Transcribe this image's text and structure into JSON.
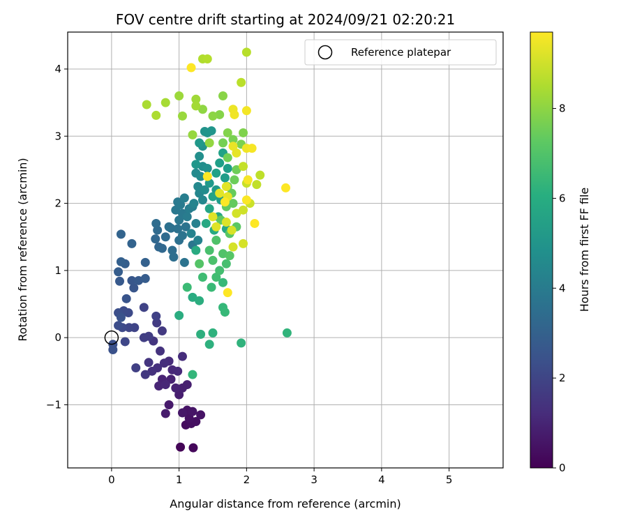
{
  "chart_data": {
    "type": "scatter",
    "title": "FOV centre drift starting at 2024/09/21 02:20:21",
    "xlabel": "Angular distance from reference (arcmin)",
    "ylabel": "Rotation from reference (arcmin)",
    "xlim": [
      -0.65,
      5.8
    ],
    "ylim": [
      -1.94,
      4.55
    ],
    "x_ticks": [
      0,
      1,
      2,
      3,
      4,
      5
    ],
    "x_tick_labels": [
      "0",
      "1",
      "2",
      "3",
      "4",
      "5"
    ],
    "y_ticks": [
      -1,
      0,
      1,
      2,
      3,
      4
    ],
    "y_tick_labels": [
      "−1",
      "0",
      "1",
      "2",
      "3",
      "4"
    ],
    "grid": true,
    "legend": {
      "placement": "top-right",
      "entries": [
        "Reference platepar"
      ]
    },
    "reference_point": {
      "x": 0,
      "y": 0,
      "label": "Reference platepar"
    },
    "colorbar": {
      "label": "Hours from first FF file",
      "colormap": "viridis",
      "range": [
        0,
        9.7
      ],
      "ticks": [
        0,
        2,
        4,
        6,
        8
      ],
      "tick_labels": [
        "0",
        "2",
        "4",
        "6",
        "8"
      ]
    },
    "points": [
      [
        1.02,
        -1.63,
        0.1
      ],
      [
        1.21,
        -1.64,
        0.2
      ],
      [
        1.1,
        -1.3,
        0.3
      ],
      [
        1.18,
        -1.28,
        0.35
      ],
      [
        1.25,
        -1.25,
        0.4
      ],
      [
        1.15,
        -1.2,
        0.45
      ],
      [
        1.32,
        -1.15,
        0.5
      ],
      [
        1.12,
        -1.08,
        0.5
      ],
      [
        1.2,
        -1.1,
        0.55
      ],
      [
        1.05,
        -1.12,
        0.6
      ],
      [
        0.85,
        -1.0,
        0.7
      ],
      [
        0.8,
        -1.13,
        0.75
      ],
      [
        1.0,
        -0.85,
        0.8
      ],
      [
        1.05,
        -0.75,
        0.85
      ],
      [
        1.12,
        -0.7,
        0.85
      ],
      [
        0.95,
        -0.75,
        0.9
      ],
      [
        0.88,
        -0.62,
        0.9
      ],
      [
        0.75,
        -0.62,
        0.95
      ],
      [
        0.7,
        -0.72,
        1.0
      ],
      [
        0.8,
        -0.7,
        1.05
      ],
      [
        0.9,
        -0.48,
        1.1
      ],
      [
        0.98,
        -0.5,
        1.15
      ],
      [
        0.85,
        -0.35,
        1.2
      ],
      [
        1.05,
        -0.28,
        1.25
      ],
      [
        0.78,
        -0.38,
        1.3
      ],
      [
        0.68,
        -0.45,
        1.35
      ],
      [
        0.6,
        -0.5,
        1.4
      ],
      [
        0.72,
        -0.2,
        1.45
      ],
      [
        0.62,
        -0.05,
        1.5
      ],
      [
        0.55,
        -0.37,
        1.5
      ],
      [
        0.5,
        -0.55,
        1.6
      ],
      [
        0.75,
        0.1,
        1.65
      ],
      [
        0.67,
        0.22,
        1.7
      ],
      [
        0.55,
        0.02,
        1.75
      ],
      [
        0.48,
        0.0,
        1.8
      ],
      [
        0.36,
        -0.45,
        1.85
      ],
      [
        0.66,
        0.32,
        1.9
      ],
      [
        0.48,
        0.45,
        1.95
      ],
      [
        0.34,
        0.15,
        2.0
      ],
      [
        0.26,
        0.15,
        2.05
      ],
      [
        0.2,
        -0.06,
        2.1
      ],
      [
        0.16,
        0.15,
        2.15
      ],
      [
        0.25,
        0.37,
        2.2
      ],
      [
        0.18,
        0.4,
        2.25
      ],
      [
        0.1,
        0.18,
        2.3
      ],
      [
        0.1,
        0.37,
        2.35
      ],
      [
        0.02,
        -0.1,
        2.4
      ],
      [
        0.02,
        -0.18,
        2.45
      ],
      [
        0.14,
        0.3,
        2.5
      ],
      [
        0.22,
        0.58,
        2.55
      ],
      [
        0.33,
        0.74,
        2.6
      ],
      [
        0.3,
        0.85,
        2.65
      ],
      [
        0.12,
        0.84,
        2.7
      ],
      [
        0.4,
        0.85,
        2.75
      ],
      [
        0.5,
        0.88,
        2.8
      ],
      [
        0.1,
        0.98,
        2.85
      ],
      [
        0.2,
        1.1,
        2.9
      ],
      [
        0.14,
        1.13,
        2.95
      ],
      [
        0.5,
        1.12,
        3.0
      ],
      [
        0.3,
        1.4,
        3.05
      ],
      [
        0.14,
        1.54,
        3.1
      ],
      [
        0.7,
        1.35,
        3.15
      ],
      [
        0.65,
        1.47,
        3.2
      ],
      [
        0.75,
        1.33,
        3.25
      ],
      [
        0.68,
        1.6,
        3.3
      ],
      [
        0.8,
        1.5,
        3.35
      ],
      [
        0.66,
        1.7,
        3.4
      ],
      [
        0.9,
        1.3,
        3.45
      ],
      [
        0.92,
        1.2,
        3.5
      ],
      [
        0.88,
        1.63,
        3.55
      ],
      [
        1.0,
        1.45,
        3.55
      ],
      [
        0.85,
        1.65,
        3.6
      ],
      [
        0.98,
        1.62,
        3.65
      ],
      [
        1.08,
        1.12,
        3.7
      ],
      [
        1.1,
        1.65,
        3.7
      ],
      [
        1.05,
        1.52,
        3.75
      ],
      [
        1.2,
        1.38,
        3.8
      ],
      [
        1.0,
        1.75,
        3.85
      ],
      [
        1.05,
        1.85,
        3.9
      ],
      [
        0.95,
        1.9,
        3.9
      ],
      [
        0.98,
        2.02,
        3.95
      ],
      [
        1.02,
        1.98,
        4.0
      ],
      [
        1.12,
        1.8,
        4.05
      ],
      [
        1.15,
        1.92,
        4.1
      ],
      [
        1.08,
        2.08,
        4.15
      ],
      [
        1.2,
        1.95,
        4.2
      ],
      [
        1.25,
        1.7,
        4.25
      ],
      [
        1.28,
        1.45,
        4.3
      ],
      [
        1.18,
        1.55,
        4.35
      ],
      [
        1.22,
        2.0,
        4.4
      ],
      [
        1.3,
        2.15,
        4.45
      ],
      [
        1.35,
        2.05,
        4.5
      ],
      [
        1.28,
        2.25,
        4.55
      ],
      [
        1.25,
        2.45,
        4.6
      ],
      [
        1.32,
        2.4,
        4.65
      ],
      [
        1.38,
        2.2,
        4.7
      ],
      [
        1.35,
        2.55,
        4.75
      ],
      [
        1.3,
        2.7,
        4.8
      ],
      [
        1.42,
        2.52,
        4.85
      ],
      [
        1.35,
        2.85,
        4.9
      ],
      [
        1.38,
        3.07,
        4.95
      ],
      [
        1.42,
        3.05,
        5.0
      ],
      [
        1.48,
        3.08,
        5.05
      ],
      [
        1.25,
        2.58,
        5.1
      ],
      [
        1.3,
        2.9,
        5.15
      ],
      [
        1.45,
        2.3,
        5.2
      ],
      [
        1.55,
        2.2,
        5.25
      ],
      [
        1.62,
        2.05,
        5.3
      ],
      [
        1.68,
        2.38,
        5.35
      ],
      [
        1.72,
        2.52,
        5.4
      ],
      [
        1.6,
        2.6,
        5.45
      ],
      [
        1.55,
        2.45,
        5.5
      ],
      [
        1.65,
        2.75,
        5.55
      ],
      [
        1.5,
        2.1,
        5.6
      ],
      [
        1.45,
        1.92,
        5.65
      ],
      [
        1.58,
        1.8,
        5.7
      ],
      [
        1.7,
        1.62,
        5.75
      ],
      [
        1.4,
        1.7,
        5.8
      ],
      [
        1.52,
        1.6,
        5.85
      ],
      [
        1.25,
        1.3,
        5.9
      ],
      [
        1.2,
        0.6,
        5.95
      ],
      [
        1.0,
        0.33,
        6.0
      ],
      [
        1.3,
        0.55,
        6.05
      ],
      [
        1.32,
        0.05,
        6.1
      ],
      [
        1.45,
        -0.1,
        6.15
      ],
      [
        1.5,
        0.07,
        6.2
      ],
      [
        1.92,
        -0.08,
        6.25
      ],
      [
        2.6,
        0.07,
        6.3
      ],
      [
        1.2,
        -0.55,
        6.4
      ],
      [
        1.65,
        0.45,
        6.45
      ],
      [
        1.68,
        0.38,
        6.5
      ],
      [
        1.65,
        0.82,
        6.5
      ],
      [
        1.48,
        0.75,
        6.55
      ],
      [
        1.12,
        0.75,
        6.6
      ],
      [
        1.35,
        0.9,
        6.65
      ],
      [
        1.55,
        0.9,
        6.7
      ],
      [
        1.6,
        1.0,
        6.75
      ],
      [
        1.7,
        1.1,
        6.8
      ],
      [
        1.45,
        1.3,
        6.85
      ],
      [
        1.5,
        1.15,
        6.9
      ],
      [
        1.55,
        1.45,
        6.95
      ],
      [
        1.65,
        1.25,
        7.0
      ],
      [
        1.3,
        1.1,
        7.05
      ],
      [
        1.75,
        1.22,
        7.1
      ],
      [
        1.75,
        1.55,
        7.15
      ],
      [
        1.85,
        1.65,
        7.2
      ],
      [
        1.62,
        1.75,
        7.25
      ],
      [
        1.7,
        1.95,
        7.3
      ],
      [
        1.8,
        2.0,
        7.35
      ],
      [
        1.78,
        2.15,
        7.4
      ],
      [
        1.72,
        2.25,
        7.45
      ],
      [
        1.82,
        2.35,
        7.5
      ],
      [
        1.85,
        2.5,
        7.55
      ],
      [
        1.72,
        2.68,
        7.6
      ],
      [
        1.65,
        2.9,
        7.65
      ],
      [
        1.8,
        2.95,
        7.7
      ],
      [
        1.92,
        2.88,
        7.75
      ],
      [
        1.95,
        3.05,
        7.8
      ],
      [
        1.72,
        3.05,
        7.85
      ],
      [
        1.6,
        3.32,
        7.9
      ],
      [
        1.65,
        3.6,
        7.95
      ],
      [
        1.5,
        3.3,
        8.0
      ],
      [
        1.35,
        3.4,
        8.05
      ],
      [
        1.45,
        2.9,
        8.1
      ],
      [
        1.2,
        3.02,
        8.15
      ],
      [
        1.05,
        3.3,
        8.2
      ],
      [
        1.0,
        3.6,
        8.25
      ],
      [
        1.25,
        3.55,
        8.3
      ],
      [
        1.25,
        3.45,
        8.35
      ],
      [
        0.8,
        3.5,
        8.4
      ],
      [
        0.52,
        3.47,
        8.45
      ],
      [
        0.66,
        3.31,
        8.5
      ],
      [
        1.35,
        4.15,
        8.55
      ],
      [
        1.42,
        4.15,
        8.6
      ],
      [
        2.0,
        4.25,
        8.65
      ],
      [
        1.92,
        3.8,
        8.7
      ],
      [
        2.2,
        2.42,
        8.75
      ],
      [
        2.15,
        2.28,
        8.8
      ],
      [
        1.95,
        2.55,
        8.85
      ],
      [
        2.0,
        2.3,
        8.9
      ],
      [
        2.05,
        2.0,
        8.95
      ],
      [
        1.95,
        1.9,
        9.0
      ],
      [
        1.85,
        1.85,
        9.05
      ],
      [
        1.8,
        1.35,
        9.1
      ],
      [
        1.95,
        1.4,
        9.1
      ],
      [
        1.78,
        1.6,
        9.15
      ],
      [
        1.7,
        1.72,
        9.2
      ],
      [
        1.5,
        1.8,
        9.25
      ],
      [
        1.55,
        1.65,
        9.25
      ],
      [
        1.6,
        2.15,
        9.3
      ],
      [
        1.7,
        2.25,
        9.3
      ],
      [
        1.72,
        2.1,
        9.35
      ],
      [
        1.85,
        2.75,
        9.35
      ],
      [
        1.8,
        2.85,
        9.4
      ],
      [
        1.8,
        3.4,
        9.45
      ],
      [
        1.82,
        3.32,
        9.5
      ],
      [
        2.0,
        3.38,
        9.55
      ],
      [
        2.0,
        2.82,
        9.5
      ],
      [
        2.08,
        2.82,
        9.6
      ],
      [
        2.02,
        2.35,
        9.6
      ],
      [
        2.0,
        2.05,
        9.65
      ],
      [
        1.68,
        2.02,
        9.65
      ],
      [
        1.42,
        2.4,
        9.7
      ],
      [
        2.58,
        2.23,
        9.7
      ],
      [
        2.12,
        1.7,
        9.7
      ],
      [
        1.72,
        0.67,
        9.7
      ],
      [
        1.18,
        4.02,
        9.7
      ]
    ]
  }
}
